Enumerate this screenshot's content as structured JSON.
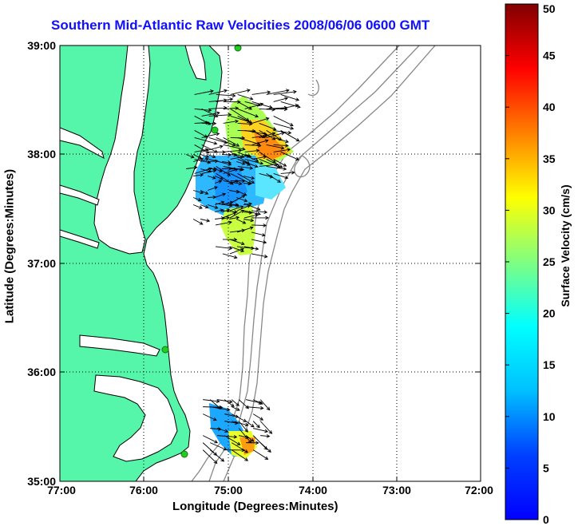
{
  "title": "Southern Mid-Atlantic Raw Velocities 2008/06/06 0600 GMT",
  "xlabel": "Longitude (Degrees:Minutes)",
  "ylabel": "Latitude (Degrees:Minutes)",
  "colorbar": {
    "label": "Surface Velocity (cm/s)",
    "range": [
      0,
      50
    ],
    "ticks": [
      "0",
      "5",
      "10",
      "15",
      "20",
      "25",
      "30",
      "35",
      "40",
      "45",
      "50"
    ],
    "colormap": "jet"
  },
  "map": {
    "xticks": [
      "77:00",
      "76:00",
      "75:00",
      "74:00",
      "73:00",
      "72:00"
    ],
    "yticks": [
      "35:00",
      "36:00",
      "37:00",
      "38:00",
      "39:00"
    ],
    "lon_range": [
      -77,
      -72
    ],
    "lat_range": [
      35,
      39
    ],
    "grid": "dotted",
    "land_color": "#55f5aa",
    "station_color": "#22cc22"
  },
  "chart_data": {
    "type": "quiver",
    "title": "Southern Mid-Atlantic Raw Velocities 2008/06/06 0600 GMT",
    "xlabel": "Longitude (Degrees:Minutes)",
    "ylabel": "Latitude (Degrees:Minutes)",
    "xlim": [
      -77,
      -72
    ],
    "ylim": [
      35,
      39
    ],
    "color_scale": [
      0,
      50
    ],
    "stations": [
      {
        "lon": -74.9,
        "lat": 38.98
      },
      {
        "lon": -75.1,
        "lat": 38.2
      },
      {
        "lon": -75.83,
        "lat": 36.2
      },
      {
        "lon": -75.48,
        "lat": 35.25
      }
    ],
    "vector_regions": [
      {
        "lon": [
          -75.4,
          -74.35
        ],
        "lat": [
          37.7,
          38.55
        ],
        "speed_range": [
          20,
          42
        ]
      },
      {
        "lon": [
          -75.5,
          -74.8
        ],
        "lat": [
          37.35,
          38.0
        ],
        "speed_range": [
          5,
          15
        ]
      },
      {
        "lon": [
          -75.15,
          -74.65
        ],
        "lat": [
          37.05,
          37.55
        ],
        "speed_range": [
          20,
          28
        ]
      },
      {
        "lon": [
          -75.3,
          -74.6
        ],
        "lat": [
          35.25,
          35.75
        ],
        "speed_range": [
          8,
          35
        ]
      }
    ]
  }
}
